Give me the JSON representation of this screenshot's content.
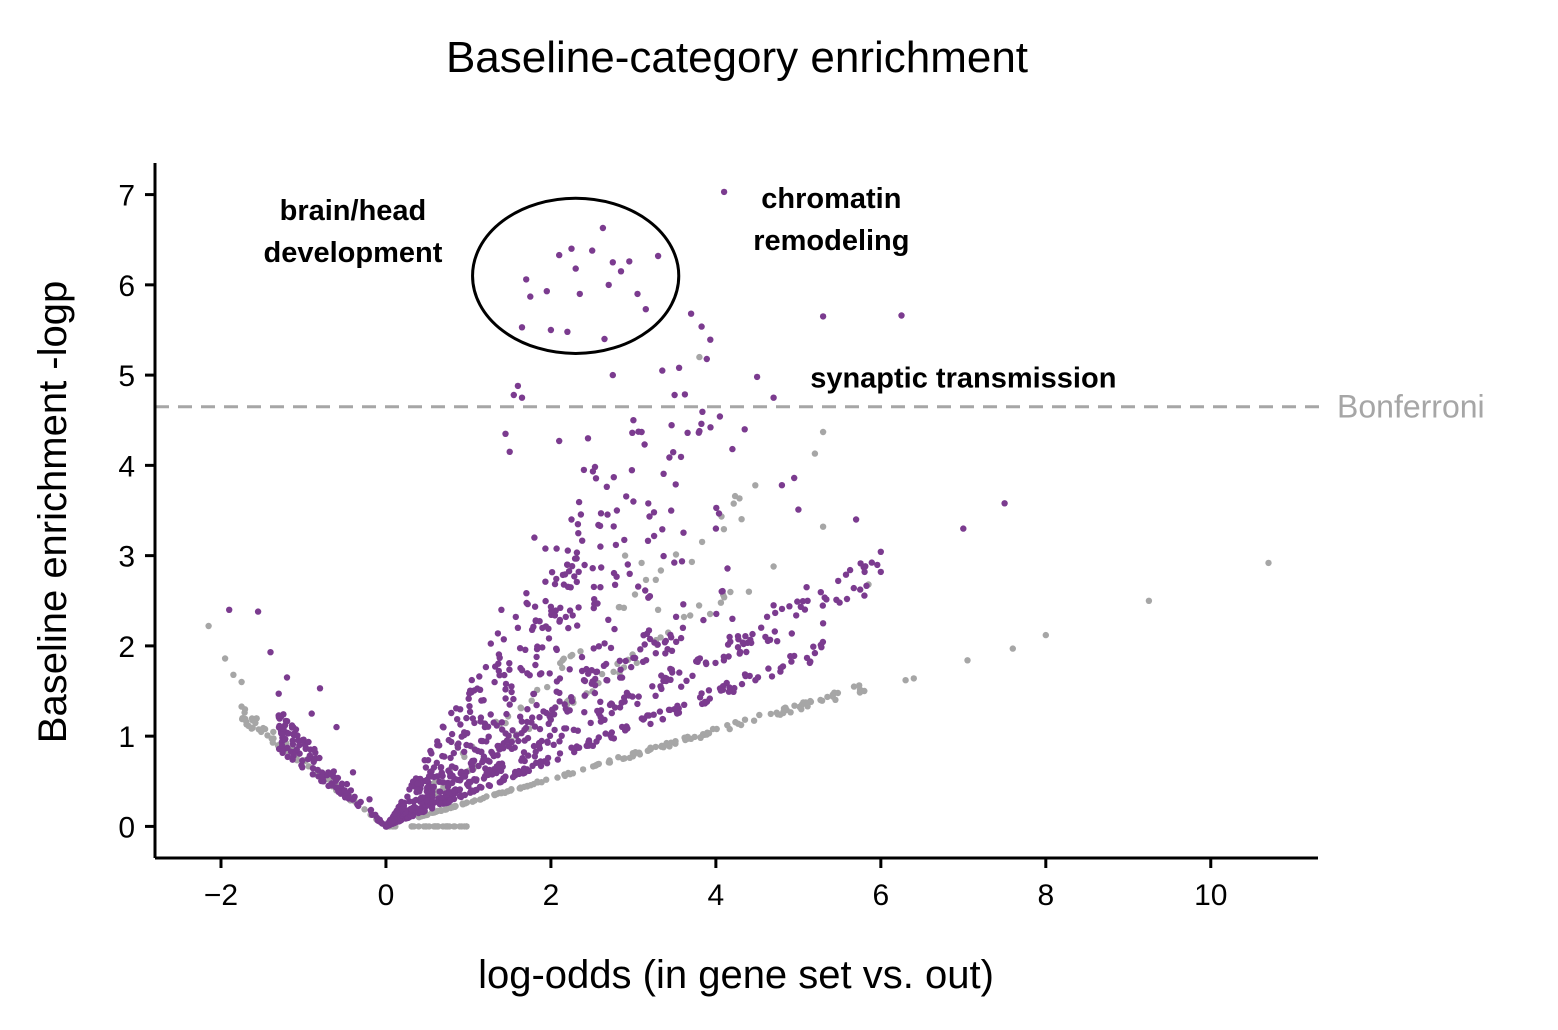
{
  "chart_data": {
    "type": "scatter",
    "title": "Baseline-category enrichment",
    "xlabel": "log-odds (in gene set vs. out)",
    "ylabel": "Baseline enrichment -logp",
    "xlim": [
      -2.8,
      11.3
    ],
    "ylim": [
      -0.35,
      7.35
    ],
    "x_ticks": [
      -2,
      0,
      2,
      4,
      6,
      8,
      10
    ],
    "x_tick_labels": [
      "−2",
      "0",
      "2",
      "4",
      "6",
      "8",
      "10"
    ],
    "y_ticks": [
      0,
      1,
      2,
      3,
      4,
      5,
      6,
      7
    ],
    "y_tick_labels": [
      "0",
      "1",
      "2",
      "3",
      "4",
      "5",
      "6",
      "7"
    ],
    "grid": false,
    "colors": {
      "significant": "#7b3b8f",
      "not_significant": "#a6a6a6",
      "threshold_line": "#a6a6a6"
    },
    "threshold": {
      "label": "Bonferroni",
      "y": 4.65
    },
    "highlight_ellipse": {
      "cx": 2.3,
      "cy": 6.1,
      "rx": 1.25,
      "ry": 0.86
    },
    "annotations": [
      {
        "lines": [
          "brain/head",
          "development"
        ],
        "x": -0.4,
        "y": 6.72
      },
      {
        "lines": [
          "chromatin",
          "remodeling"
        ],
        "x": 5.4,
        "y": 6.85
      },
      {
        "lines": [
          "synaptic transmission"
        ],
        "x": 7.0,
        "y": 4.86
      }
    ],
    "series": [
      {
        "name": "",
        "color": "#7b3b8f",
        "points": [
          [
            2.5,
            6.38
          ],
          [
            2.63,
            6.63
          ],
          [
            2.75,
            6.25
          ],
          [
            2.95,
            6.26
          ],
          [
            3.3,
            6.32
          ],
          [
            2.1,
            6.33
          ],
          [
            2.25,
            6.4
          ],
          [
            2.3,
            6.18
          ],
          [
            1.7,
            6.06
          ],
          [
            1.75,
            5.87
          ],
          [
            1.95,
            5.93
          ],
          [
            2.35,
            5.9
          ],
          [
            2.7,
            6.0
          ],
          [
            2.85,
            6.15
          ],
          [
            3.05,
            5.9
          ],
          [
            3.15,
            5.73
          ],
          [
            1.65,
            5.53
          ],
          [
            2.0,
            5.5
          ],
          [
            2.2,
            5.48
          ],
          [
            2.65,
            5.4
          ],
          [
            4.1,
            7.03
          ],
          [
            3.7,
            5.68
          ],
          [
            5.3,
            5.65
          ],
          [
            6.25,
            5.66
          ],
          [
            4.5,
            4.98
          ],
          [
            1.6,
            4.88
          ],
          [
            1.65,
            4.75
          ],
          [
            1.55,
            4.78
          ],
          [
            1.45,
            4.35
          ],
          [
            1.5,
            4.15
          ],
          [
            2.45,
            4.3
          ],
          [
            2.1,
            4.27
          ],
          [
            3.0,
            4.5
          ],
          [
            3.1,
            4.37
          ],
          [
            3.5,
            4.78
          ],
          [
            3.35,
            5.05
          ],
          [
            2.75,
            5.0
          ],
          [
            3.8,
            4.38
          ],
          [
            4.2,
            4.18
          ],
          [
            4.35,
            4.4
          ],
          [
            4.7,
            4.75
          ],
          [
            2.4,
            3.95
          ],
          [
            3.0,
            3.6
          ],
          [
            3.25,
            3.48
          ],
          [
            2.25,
            3.4
          ],
          [
            1.8,
            3.2
          ],
          [
            2.8,
            3.5
          ],
          [
            4.0,
            3.3
          ],
          [
            4.8,
            3.78
          ],
          [
            4.95,
            3.86
          ],
          [
            5.0,
            3.51
          ],
          [
            5.7,
            3.4
          ],
          [
            7.0,
            3.3
          ],
          [
            7.5,
            3.58
          ],
          [
            6.0,
            2.82
          ],
          [
            5.1,
            2.65
          ],
          [
            5.5,
            2.48
          ],
          [
            5.3,
            2.25
          ],
          [
            4.7,
            2.45
          ],
          [
            -1.9,
            2.4
          ],
          [
            -1.55,
            2.38
          ],
          [
            -1.4,
            1.93
          ],
          [
            -1.2,
            1.65
          ],
          [
            -1.3,
            1.47
          ],
          [
            -0.8,
            1.53
          ],
          [
            -0.9,
            1.25
          ],
          [
            -0.6,
            1.1
          ],
          [
            -1.05,
            0.9
          ],
          [
            -0.4,
            0.6
          ],
          [
            -0.2,
            0.3
          ],
          [
            1.4,
            2.4
          ],
          [
            1.6,
            2.2
          ],
          [
            2.2,
            2.9
          ],
          [
            2.6,
            3.1
          ],
          [
            3.2,
            2.55
          ],
          [
            3.6,
            2.2
          ],
          [
            1.2,
            1.1
          ],
          [
            1.5,
            1.35
          ],
          [
            2.6,
            2.65
          ],
          [
            4.2,
            2.3
          ],
          [
            4.6,
            2.1
          ]
        ],
        "bands": [
          {
            "x_range": [
              0.0,
              4.2
            ],
            "slope": 0.95,
            "spread": 0.55,
            "count": 260
          },
          {
            "x_range": [
              0.0,
              6.0
            ],
            "slope": 0.47,
            "spread": 0.08,
            "count": 210
          },
          {
            "x_range": [
              0.0,
              5.4
            ],
            "slope": 0.37,
            "spread": 0.05,
            "count": 180
          },
          {
            "x_range": [
              0.0,
              3.6
            ],
            "slope": 0.62,
            "spread": 0.1,
            "count": 150
          },
          {
            "x_range": [
              0.0,
              2.8
            ],
            "slope": 1.15,
            "spread": 0.4,
            "count": 180
          },
          {
            "x_range": [
              -1.3,
              0.0
            ],
            "slope": -0.82,
            "spread": 0.22,
            "count": 120
          }
        ]
      },
      {
        "name": "",
        "color": "#a6a6a6",
        "points": [
          [
            -2.15,
            2.22
          ],
          [
            -1.95,
            1.86
          ],
          [
            -1.85,
            1.68
          ],
          [
            -1.75,
            1.6
          ],
          [
            10.7,
            2.92
          ],
          [
            9.25,
            2.5
          ],
          [
            8.0,
            2.12
          ],
          [
            7.6,
            1.97
          ],
          [
            7.05,
            1.84
          ],
          [
            6.4,
            1.64
          ],
          [
            6.3,
            1.62
          ],
          [
            5.8,
            1.5
          ],
          [
            5.3,
            4.37
          ],
          [
            5.2,
            4.13
          ],
          [
            3.8,
            5.2
          ],
          [
            5.3,
            3.32
          ],
          [
            5.85,
            2.68
          ],
          [
            4.7,
            2.88
          ],
          [
            4.4,
            2.6
          ],
          [
            3.1,
            2.92
          ],
          [
            2.9,
            3.0
          ],
          [
            3.3,
            2.4
          ]
        ],
        "bands": [
          {
            "x_range": [
              0.4,
              5.8
            ],
            "slope": 0.265,
            "spread": 0.03,
            "count": 170
          },
          {
            "x_range": [
              0.0,
              1.05
            ],
            "slope": 0.0,
            "spread": 0.01,
            "count": 40
          },
          {
            "x_range": [
              -1.75,
              -0.1
            ],
            "slope": -0.72,
            "spread": 0.08,
            "count": 70
          },
          {
            "x_range": [
              0.5,
              4.2
            ],
            "slope": 0.62,
            "spread": 0.04,
            "count": 60
          },
          {
            "x_range": [
              0.5,
              4.8
            ],
            "slope": 0.83,
            "spread": 0.05,
            "count": 50
          }
        ]
      }
    ]
  }
}
